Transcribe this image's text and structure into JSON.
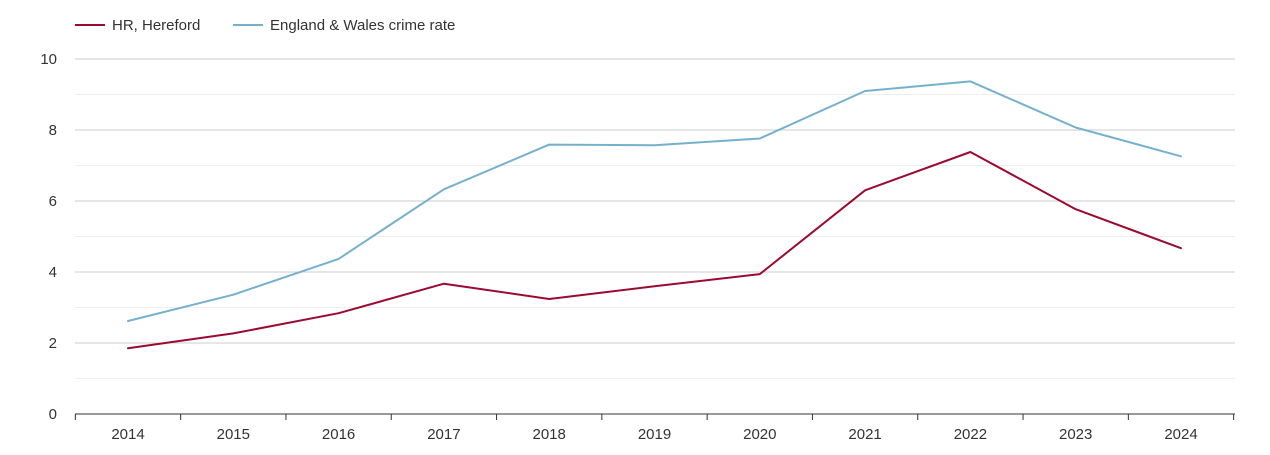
{
  "chart_data": {
    "type": "line",
    "title": "",
    "xlabel": "",
    "ylabel": "",
    "x": [
      "2014",
      "2015",
      "2016",
      "2017",
      "2018",
      "2019",
      "2020",
      "2021",
      "2022",
      "2023",
      "2024"
    ],
    "ylim": [
      0,
      10
    ],
    "yticks": [
      "0",
      "2",
      "4",
      "6",
      "8",
      "10"
    ],
    "grid": true,
    "legend_position": "top-left",
    "series": [
      {
        "name": "HR, Hereford",
        "color": "#9b0a31",
        "values": [
          1.85,
          2.27,
          2.84,
          3.67,
          3.24,
          3.6,
          3.94,
          6.3,
          7.38,
          5.77,
          4.67
        ]
      },
      {
        "name": "England & Wales crime rate",
        "color": "#76b0cf",
        "values": [
          2.62,
          3.36,
          4.37,
          6.33,
          7.59,
          7.57,
          7.76,
          9.1,
          9.37,
          8.07,
          7.26
        ]
      }
    ]
  }
}
